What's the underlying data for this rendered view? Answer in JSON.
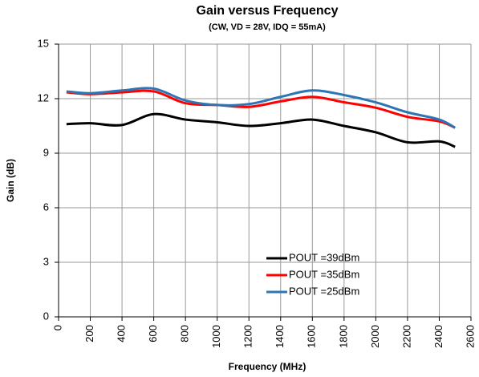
{
  "chart_data": {
    "type": "line",
    "title": "Gain versus Frequency",
    "subtitle": "(CW, VD = 28V, IDQ = 55mA)",
    "x_label": "Frequency (MHz)",
    "y_label": "Gain (dB)",
    "x": [
      50,
      200,
      400,
      600,
      800,
      1000,
      1200,
      1400,
      1600,
      1800,
      2000,
      2200,
      2400,
      2500
    ],
    "series": [
      {
        "name": "POUT =39dBm",
        "color": "#000000",
        "values": [
          10.6,
          10.65,
          10.55,
          11.15,
          10.85,
          10.7,
          10.5,
          10.65,
          10.85,
          10.5,
          10.15,
          9.6,
          9.65,
          9.35
        ]
      },
      {
        "name": "POUT =35dBm",
        "color": "#ff0000",
        "values": [
          12.35,
          12.25,
          12.35,
          12.4,
          11.75,
          11.65,
          11.55,
          11.85,
          12.1,
          11.8,
          11.5,
          11.0,
          10.75,
          10.4
        ]
      },
      {
        "name": "POUT =25dBm",
        "color": "#2e75b6",
        "values": [
          12.4,
          12.3,
          12.45,
          12.55,
          11.9,
          11.65,
          11.7,
          12.1,
          12.45,
          12.2,
          11.8,
          11.25,
          10.85,
          10.4
        ]
      }
    ],
    "xlim": [
      0,
      2600
    ],
    "xticks": [
      0,
      200,
      400,
      600,
      800,
      1000,
      1200,
      1400,
      1600,
      1800,
      2000,
      2200,
      2400,
      2600
    ],
    "ylim": [
      0,
      15
    ],
    "yticks": [
      0,
      3,
      6,
      9,
      12,
      15
    ],
    "grid": true,
    "legend": "lower right"
  }
}
